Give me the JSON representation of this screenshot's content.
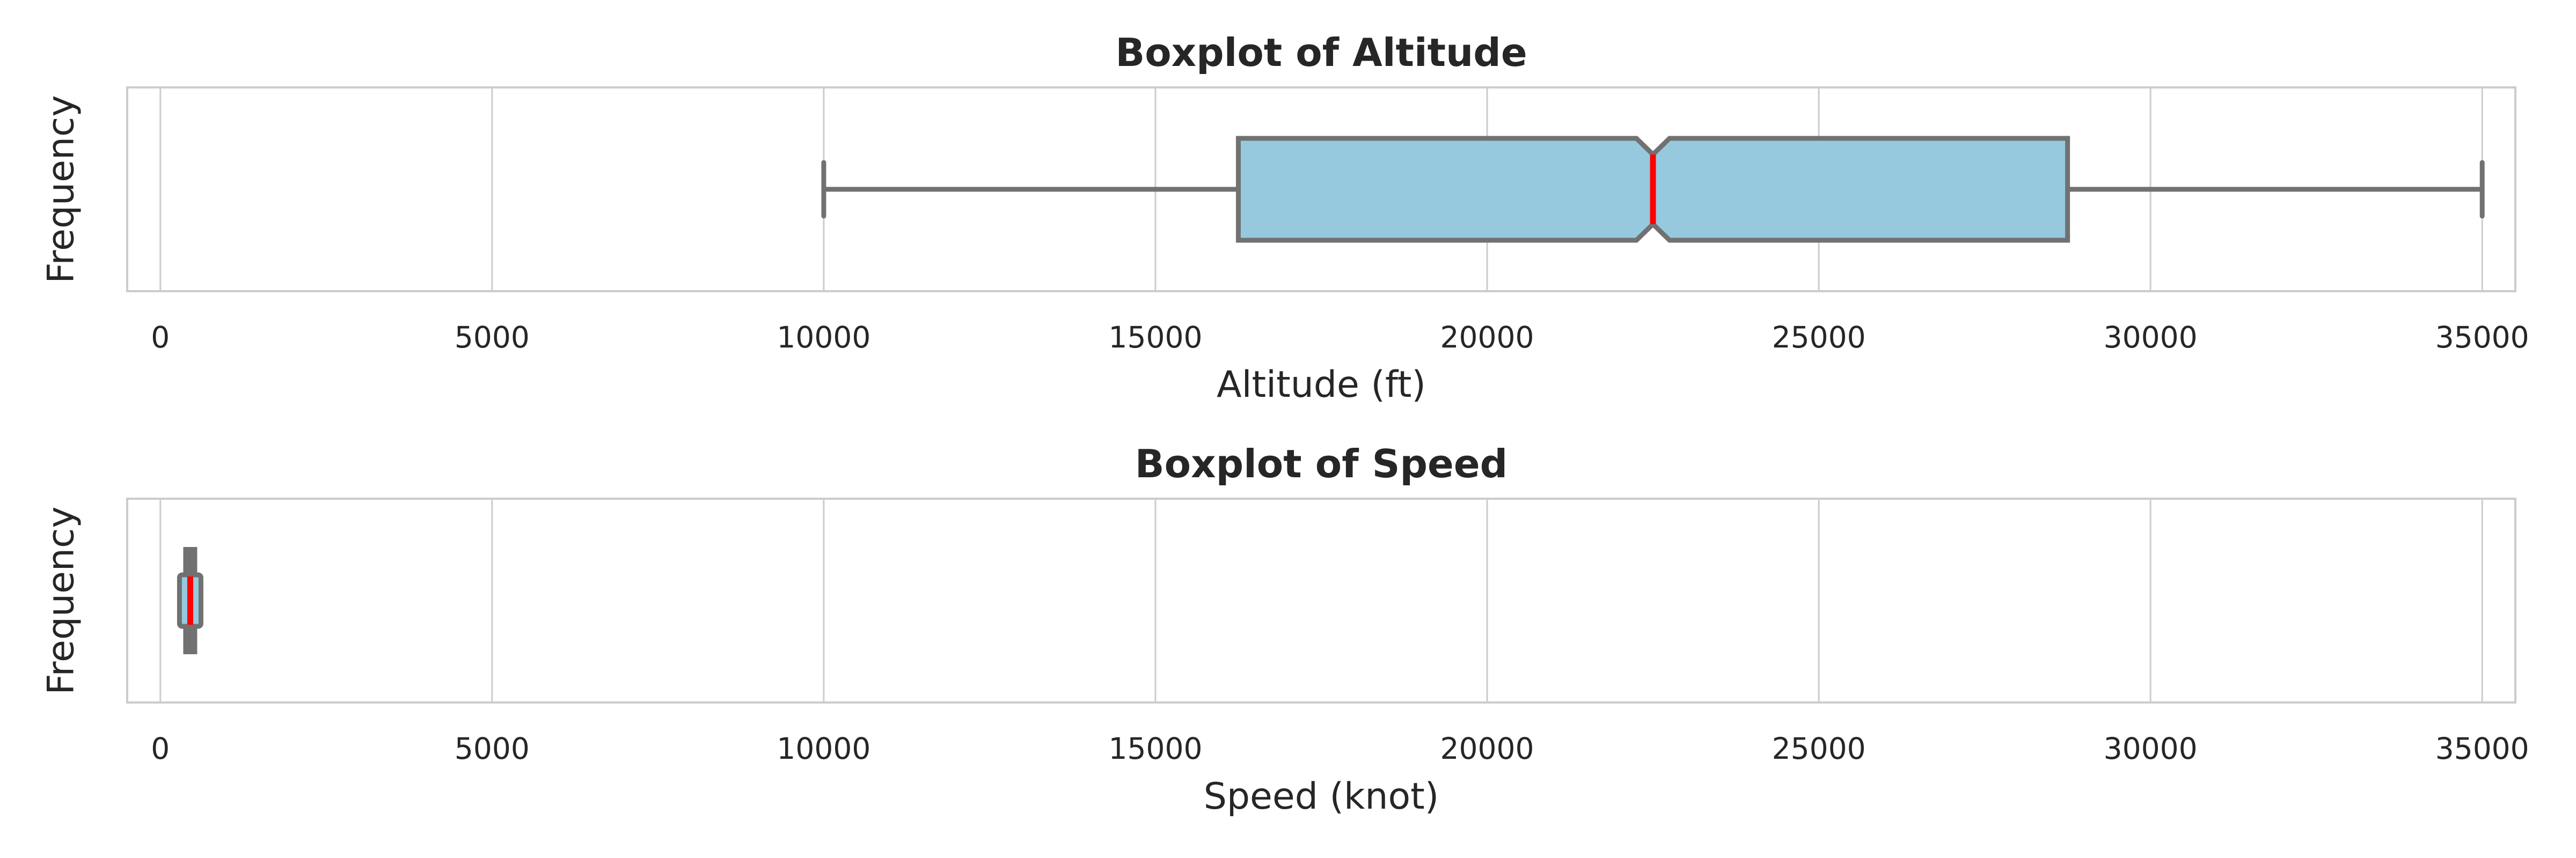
{
  "chart_data": [
    {
      "type": "boxplot",
      "title": "Boxplot of Altitude",
      "xlabel": "Altitude (ft)",
      "ylabel": "Frequency",
      "xlim": [
        -500,
        35500
      ],
      "xticks": [
        0,
        5000,
        10000,
        15000,
        20000,
        25000,
        30000,
        35000
      ],
      "grid": true,
      "notched": true,
      "box": {
        "whisker_low": 10000,
        "q1": 16250,
        "median": 22500,
        "q3": 28750,
        "whisker_high": 35000,
        "notch_low": 22250,
        "notch_high": 22750
      }
    },
    {
      "type": "boxplot",
      "title": "Boxplot of Speed",
      "xlabel": "Speed (knot)",
      "ylabel": "Frequency",
      "xlim": [
        -500,
        35500
      ],
      "xticks": [
        0,
        5000,
        10000,
        15000,
        20000,
        25000,
        30000,
        35000
      ],
      "grid": true,
      "notched": true,
      "box": {
        "whisker_low": 320,
        "q1": 330,
        "median": 450,
        "q3": 560,
        "whisker_high": 570,
        "notch_low": 440,
        "notch_high": 460
      }
    }
  ],
  "colors": {
    "box_fill": "#96c9de",
    "box_edge": "#717171",
    "median": "#ff0000",
    "grid": "#cccccc",
    "spine": "#cccccc",
    "text": "#262626"
  }
}
